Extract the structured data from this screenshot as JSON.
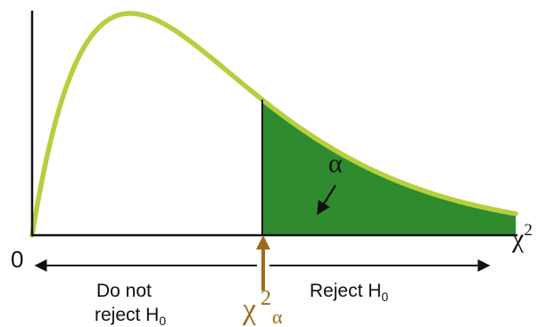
{
  "diagram": {
    "origin_label": "0",
    "x_axis_label": "χ",
    "x_axis_label_sup": "2",
    "alpha_label": "α",
    "critical_value": {
      "symbol": "χ",
      "sup": "2",
      "sub": "α"
    },
    "regions": {
      "do_not_reject_line1": "Do not",
      "do_not_reject_line2": "reject H",
      "do_not_reject_sub": "0",
      "reject": "Reject H",
      "reject_sub": "0"
    },
    "colors": {
      "curve": "#b6cf3f",
      "rejection_area": "#2e8b2e",
      "critical_arrow": "#a06a1c",
      "critical_label": "#a06a1c",
      "axes": "#111111"
    }
  }
}
